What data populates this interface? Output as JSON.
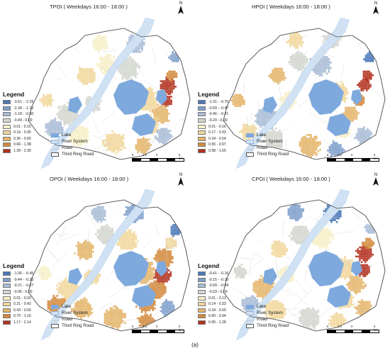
{
  "panels": [
    {
      "id": "tpoi",
      "title": "TPOI ( Weekdays 16:00 - 18:00 )",
      "legend_title": "Legend",
      "classes": [
        {
          "label": "-3.61 - -2.29",
          "color": "#4a78b8"
        },
        {
          "label": "-2.28 - -1.19",
          "color": "#7d9fcb"
        },
        {
          "label": "-1.18 - -0.50",
          "color": "#a9bcd6"
        },
        {
          "label": "-0.49 - 0.00",
          "color": "#d4d6cf"
        },
        {
          "label": "0.01 - 0.15",
          "color": "#f6f0c8"
        },
        {
          "label": "0.16 - 0.35",
          "color": "#f1d79c"
        },
        {
          "label": "0.36 - 0.65",
          "color": "#e4b56a"
        },
        {
          "label": "0.66 - 1.38",
          "color": "#d38a3c"
        },
        {
          "label": "1.39 - 2.36",
          "color": "#b3301e"
        }
      ],
      "features": [
        "Lake",
        "River System",
        "Road",
        "Third Ring Road"
      ],
      "scale_labels": [
        "5",
        "2.5",
        "0",
        "5 km"
      ]
    },
    {
      "id": "hpoi",
      "title": "HPOI ( Weekdays 16:00 - 18:00 )",
      "legend_title": "Legend",
      "classes": [
        {
          "label": "-1.31 - -0.70",
          "color": "#4a78b8"
        },
        {
          "label": "-0.69 - -0.47",
          "color": "#7d9fcb"
        },
        {
          "label": "-0.46 - -0.21",
          "color": "#a9bcd6"
        },
        {
          "label": "-0.20 - 0.00",
          "color": "#d4d6cf"
        },
        {
          "label": "0.01 - 0.16",
          "color": "#f6f0c8"
        },
        {
          "label": "0.17 - 0.33",
          "color": "#f1d79c"
        },
        {
          "label": "0.34 - 0.54",
          "color": "#e4b56a"
        },
        {
          "label": "0.55 - 0.97",
          "color": "#d38a3c"
        },
        {
          "label": "0.98 - 1.65",
          "color": "#b3301e"
        }
      ],
      "features": [
        "Lake",
        "River System",
        "Road",
        "Third Ring Road"
      ],
      "scale_labels": [
        "5",
        "2.5",
        "0",
        "5 km"
      ]
    },
    {
      "id": "opoi",
      "title": "OPOI ( Weekdays 16:00 - 18:00 )",
      "legend_title": "Legend",
      "classes": [
        {
          "label": "-1.06 - -0.45",
          "color": "#4a78b8"
        },
        {
          "label": "-0.44 - -0.22",
          "color": "#7d9fcb"
        },
        {
          "label": "-0.21 - -0.07",
          "color": "#a9bcd6"
        },
        {
          "label": "-0.06 - 0.00",
          "color": "#d4d6cf"
        },
        {
          "label": "0.01 - 0.20",
          "color": "#f6f0c8"
        },
        {
          "label": "0.21 - 0.42",
          "color": "#f1d79c"
        },
        {
          "label": "0.43 - 0.69",
          "color": "#e4b56a"
        },
        {
          "label": "0.70 - 1.16",
          "color": "#d38a3c"
        },
        {
          "label": "1.17 - 2.14",
          "color": "#b3301e"
        }
      ],
      "features": [
        "Lake",
        "River System",
        "Road",
        "Third Ring Road"
      ],
      "scale_labels": [
        "5",
        "2.5",
        "0",
        "5 km"
      ]
    },
    {
      "id": "cpoi",
      "title": "CPOI ( Weekdays 16:00 - 18:00 )",
      "legend_title": "Legend",
      "classes": [
        {
          "label": "-0.41 - -0.16",
          "color": "#4a78b8"
        },
        {
          "label": "-0.15 - -0.10",
          "color": "#7d9fcb"
        },
        {
          "label": "-0.09 - -0.04",
          "color": "#a9bcd6"
        },
        {
          "label": "-0.03 - 0.00",
          "color": "#d4d6cf"
        },
        {
          "label": "0.01 - 0.13",
          "color": "#f6f0c8"
        },
        {
          "label": "0.14 - 0.33",
          "color": "#f1d79c"
        },
        {
          "label": "0.34 - 0.59",
          "color": "#e4b56a"
        },
        {
          "label": "0.60 - 0.94",
          "color": "#d38a3c"
        },
        {
          "label": "0.95 - 1.28",
          "color": "#b3301e"
        }
      ],
      "features": [
        "Lake",
        "River System",
        "Road",
        "Third Ring Road"
      ],
      "scale_labels": [
        "5",
        "2.5",
        "0",
        "5 km"
      ]
    }
  ],
  "north_label": "N",
  "caption": "(a)",
  "colors": {
    "lake": "#7ea9dd",
    "river": "#cfe1f3",
    "road": "#c9c9c9",
    "ring_road": "#555555",
    "background": "#ffffff"
  }
}
